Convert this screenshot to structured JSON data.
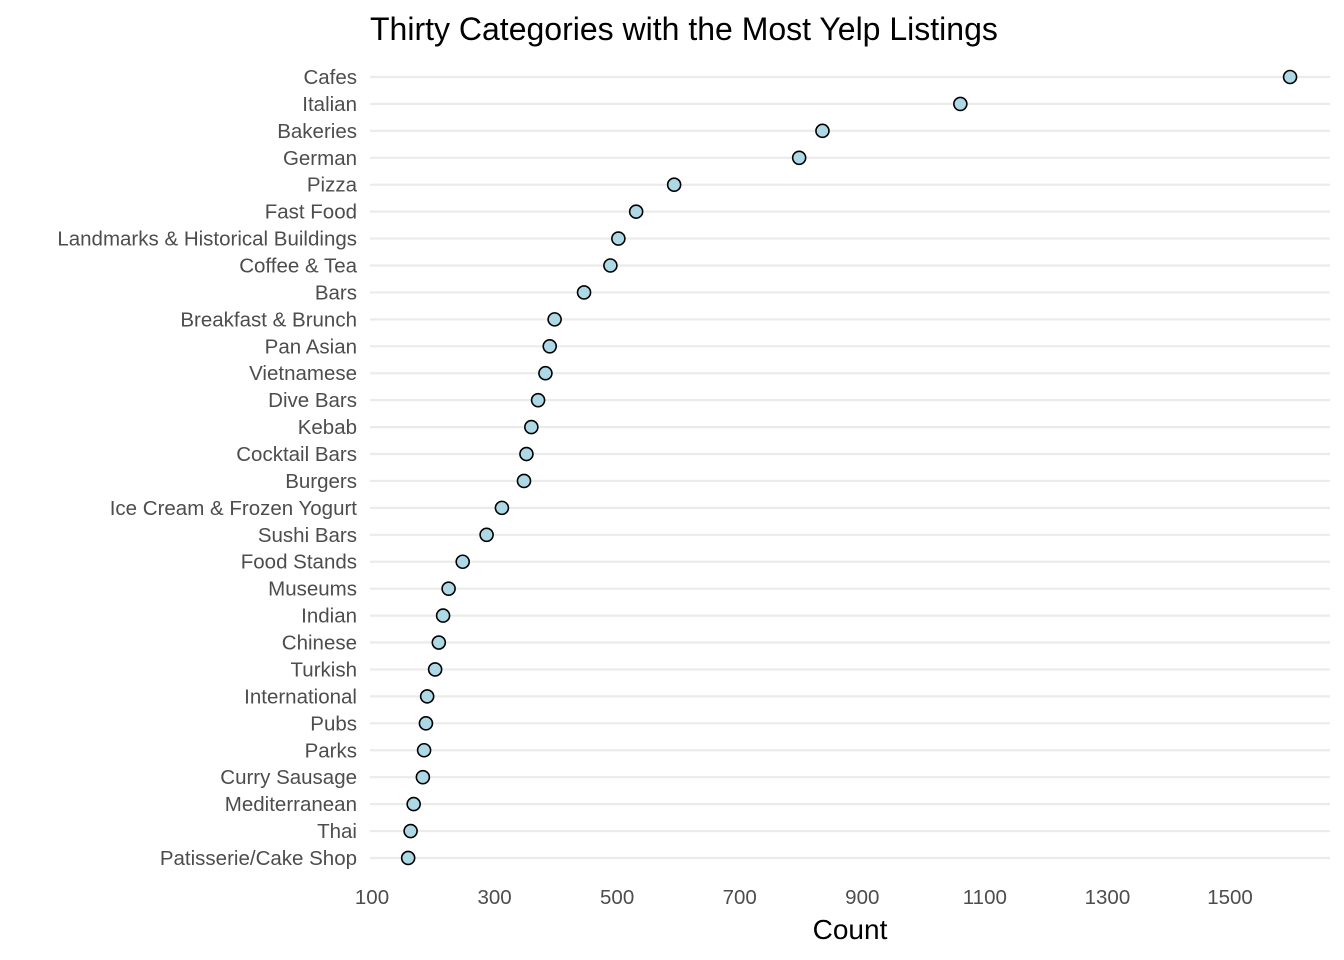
{
  "chart_data": {
    "type": "scatter",
    "title": "Thirty Categories with the Most Yelp Listings",
    "xlabel": "Count",
    "ylabel": "",
    "xlim": [
      100,
      1650
    ],
    "xticks": [
      100,
      300,
      500,
      700,
      900,
      1100,
      1300,
      1500
    ],
    "grid": "horizontal",
    "point_color": "#add8e6",
    "point_outline": "#000000",
    "categories": [
      "Cafes",
      "Italian",
      "Bakeries",
      "German",
      "Pizza",
      "Fast Food",
      "Landmarks & Historical Buildings",
      "Coffee & Tea",
      "Bars",
      "Breakfast & Brunch",
      "Pan Asian",
      "Vietnamese",
      "Dive Bars",
      "Kebab",
      "Cocktail Bars",
      "Burgers",
      "Ice Cream & Frozen Yogurt",
      "Sushi Bars",
      "Food Stands",
      "Museums",
      "Indian",
      "Chinese",
      "Turkish",
      "International",
      "Pubs",
      "Parks",
      "Curry Sausage",
      "Mediterranean",
      "Thai",
      "Patisserie/Cake Shop"
    ],
    "values": [
      1598,
      1060,
      835,
      797,
      593,
      531,
      502,
      489,
      446,
      398,
      390,
      383,
      371,
      360,
      352,
      348,
      312,
      287,
      248,
      225,
      216,
      209,
      203,
      190,
      188,
      185,
      183,
      168,
      163,
      159
    ]
  }
}
